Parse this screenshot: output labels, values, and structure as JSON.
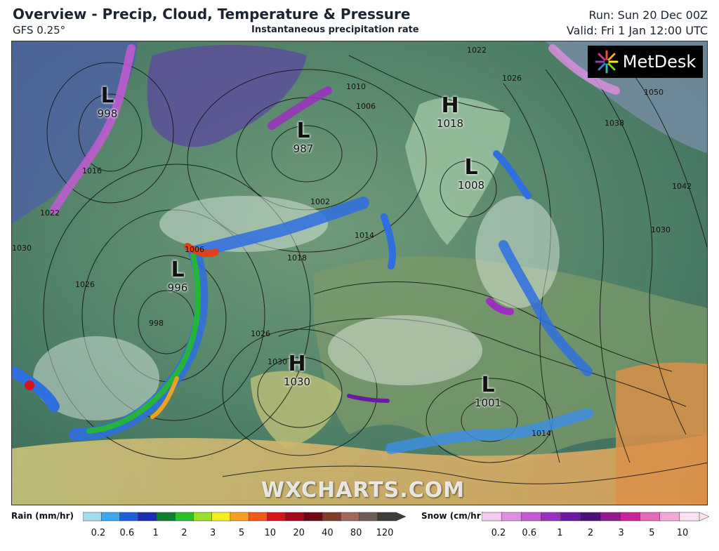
{
  "header": {
    "title": "Overview - Precip, Cloud, Temperature & Pressure",
    "model": "GFS 0.25°",
    "subtitle": "Instantaneous precipitation rate",
    "run": "Run: Sun 20 Dec 00Z",
    "valid": "Valid: Fri 1 Jan 12:00 UTC"
  },
  "logo": {
    "text": "MetDesk",
    "icon": "starburst-logo-icon"
  },
  "watermark": "WXCHARTS.COM",
  "pressure_centers": [
    {
      "type": "L",
      "value": "998"
    },
    {
      "type": "L",
      "value": "987"
    },
    {
      "type": "H",
      "value": "1018"
    },
    {
      "type": "L",
      "value": "1008"
    },
    {
      "type": "L",
      "value": "996"
    },
    {
      "type": "H",
      "value": "1030"
    },
    {
      "type": "L",
      "value": "1001"
    }
  ],
  "isobar_labels": [
    "1022",
    "1030",
    "1026",
    "1016",
    "1006",
    "998",
    "1002",
    "1014",
    "1018",
    "1010",
    "1006",
    "1026",
    "1030",
    "1022",
    "1026",
    "1050",
    "1038",
    "1042",
    "1030",
    "1014"
  ],
  "legend": {
    "rain": {
      "label": "Rain (mm/hr)",
      "ticks": [
        "0.2",
        "0.6",
        "1",
        "2",
        "3",
        "5",
        "10",
        "20",
        "40",
        "80",
        "120"
      ],
      "colors": [
        "#a8dcf0",
        "#3fa7ef",
        "#1f5fd9",
        "#1d2fb0",
        "#0e7f2d",
        "#29c02c",
        "#9adf28",
        "#f4ef22",
        "#f7a21c",
        "#ef5a17",
        "#d8141b",
        "#a3081b",
        "#6e0812",
        "#7f3d2b",
        "#9e6b57",
        "#6c5a55",
        "#3f3b3b"
      ]
    },
    "snow": {
      "label": "Snow (cm/hr)",
      "ticks": [
        "0.2",
        "0.6",
        "1",
        "2",
        "3",
        "5",
        "10"
      ],
      "colors": [
        "#f3c8f0",
        "#e08ee0",
        "#c35ad2",
        "#9b2fbe",
        "#6a1ba0",
        "#4a1278",
        "#8e1c8e",
        "#c8239a",
        "#e36ab7",
        "#f1a9d6",
        "#fbe2f1"
      ]
    }
  }
}
